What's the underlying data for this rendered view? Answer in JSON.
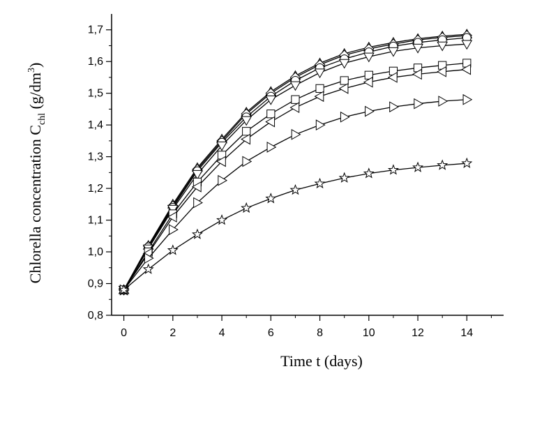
{
  "chart_data": {
    "type": "line",
    "title": "",
    "xlabel": "Time t (days)",
    "ylabel": {
      "main": "Chlorella concentration C",
      "subscript": "chl",
      "unit_open": "  (g/dm",
      "unit_sup": "3",
      "unit_close": ")"
    },
    "xlim": [
      -0.5,
      15.5
    ],
    "ylim": [
      0.8,
      1.75
    ],
    "x_ticks": [
      0,
      2,
      4,
      6,
      8,
      10,
      12,
      14
    ],
    "x_tick_labels": [
      "0",
      "2",
      "4",
      "6",
      "8",
      "10",
      "12",
      "14"
    ],
    "y_ticks": [
      0.8,
      0.9,
      1.0,
      1.1,
      1.2,
      1.3,
      1.4,
      1.5,
      1.6,
      1.7
    ],
    "y_tick_labels": [
      "0,8",
      "0,9",
      "1,0",
      "1,1",
      "1,2",
      "1,3",
      "1,4",
      "1,5",
      "1,6",
      "1,7"
    ],
    "grid": false,
    "legend": "none",
    "x": [
      0,
      1,
      2,
      3,
      4,
      5,
      6,
      7,
      8,
      9,
      10,
      11,
      12,
      13,
      14
    ],
    "series": [
      {
        "marker": "triangle-up",
        "values": [
          0.88,
          1.02,
          1.15,
          1.265,
          1.355,
          1.44,
          1.505,
          1.555,
          1.595,
          1.625,
          1.645,
          1.66,
          1.672,
          1.68,
          1.686
        ]
      },
      {
        "marker": "diamond",
        "values": [
          0.88,
          1.018,
          1.145,
          1.26,
          1.35,
          1.435,
          1.5,
          1.55,
          1.59,
          1.62,
          1.64,
          1.655,
          1.668,
          1.676,
          1.682
        ]
      },
      {
        "marker": "circle",
        "values": [
          0.88,
          1.015,
          1.14,
          1.255,
          1.345,
          1.425,
          1.49,
          1.54,
          1.58,
          1.608,
          1.63,
          1.648,
          1.66,
          1.668,
          1.675
        ]
      },
      {
        "marker": "triangle-down",
        "values": [
          0.88,
          1.01,
          1.135,
          1.245,
          1.335,
          1.415,
          1.48,
          1.525,
          1.565,
          1.595,
          1.615,
          1.632,
          1.643,
          1.65,
          1.655
        ]
      },
      {
        "marker": "square",
        "values": [
          0.88,
          1.0,
          1.12,
          1.22,
          1.305,
          1.38,
          1.435,
          1.48,
          1.515,
          1.54,
          1.557,
          1.57,
          1.58,
          1.588,
          1.595
        ]
      },
      {
        "marker": "triangle-left",
        "values": [
          0.88,
          0.995,
          1.11,
          1.205,
          1.285,
          1.355,
          1.41,
          1.455,
          1.49,
          1.515,
          1.535,
          1.55,
          1.56,
          1.568,
          1.575
        ]
      },
      {
        "marker": "triangle-right",
        "values": [
          0.88,
          0.98,
          1.07,
          1.155,
          1.225,
          1.285,
          1.33,
          1.37,
          1.4,
          1.425,
          1.443,
          1.457,
          1.467,
          1.475,
          1.48
        ]
      },
      {
        "marker": "star",
        "values": [
          0.88,
          0.945,
          1.005,
          1.055,
          1.1,
          1.138,
          1.168,
          1.195,
          1.215,
          1.233,
          1.247,
          1.258,
          1.266,
          1.273,
          1.279
        ]
      }
    ],
    "line_color": "#000000",
    "marker_fill": "#ffffff"
  }
}
